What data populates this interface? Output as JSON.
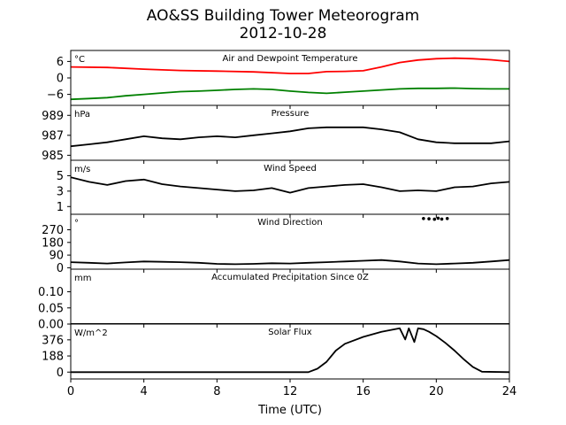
{
  "chart": {
    "title": "AO&SS Building Tower Meteorogram",
    "subtitle": "2012-10-28",
    "xlabel": "Time (UTC)"
  },
  "chart_data": {
    "type": "line",
    "x_range": [
      0,
      24
    ],
    "x_ticks": [
      0,
      4,
      8,
      12,
      16,
      20,
      24
    ],
    "x_tick_labels": [
      "0",
      "4",
      "8",
      "12",
      "16",
      "20",
      "24"
    ],
    "xlabel": "Time (UTC)",
    "panels": [
      {
        "title": "Air and Dewpoint Temperature",
        "unit": "°C",
        "ylim": [
          -10,
          10
        ],
        "y_ticks": [
          6,
          0,
          -6
        ],
        "y_tick_labels": [
          "6",
          "0",
          "−6"
        ],
        "series": [
          {
            "color": "#ff0000",
            "x": [
              0,
              2,
              4,
              6,
              8,
              10,
              12,
              13,
              14,
              15,
              16,
              17,
              18,
              19,
              20,
              21,
              22,
              23,
              24
            ],
            "values": [
              4.0,
              3.8,
              3.2,
              2.7,
              2.5,
              2.2,
              1.6,
              1.6,
              2.3,
              2.4,
              2.6,
              4.0,
              5.6,
              6.5,
              7.0,
              7.2,
              7.0,
              6.6,
              6.0
            ]
          },
          {
            "color": "#008000",
            "x": [
              0,
              1,
              2,
              3,
              4,
              5,
              6,
              7,
              8,
              9,
              10,
              11,
              12,
              13,
              14,
              15,
              16,
              17,
              18,
              19,
              20,
              21,
              22,
              23,
              24
            ],
            "values": [
              -7.8,
              -7.5,
              -7.2,
              -6.5,
              -6.0,
              -5.5,
              -5.0,
              -4.8,
              -4.5,
              -4.2,
              -4.0,
              -4.2,
              -4.8,
              -5.3,
              -5.6,
              -5.2,
              -4.8,
              -4.4,
              -4.0,
              -3.8,
              -3.8,
              -3.7,
              -3.9,
              -4.0,
              -4.0
            ]
          }
        ]
      },
      {
        "title": "Pressure",
        "unit": "hPa",
        "ylim": [
          984.5,
          990
        ],
        "y_ticks": [
          989,
          987,
          985
        ],
        "y_tick_labels": [
          "989",
          "987",
          "985"
        ],
        "series": [
          {
            "color": "#000000",
            "x": [
              0,
              1,
              2,
              3,
              4,
              5,
              6,
              7,
              8,
              9,
              10,
              11,
              12,
              13,
              14,
              15,
              16,
              17,
              18,
              19,
              20,
              21,
              22,
              23,
              24
            ],
            "values": [
              985.9,
              986.1,
              986.3,
              986.6,
              986.9,
              986.7,
              986.6,
              986.8,
              986.9,
              986.8,
              987.0,
              987.2,
              987.4,
              987.7,
              987.8,
              987.8,
              987.8,
              987.6,
              987.3,
              986.6,
              986.3,
              986.2,
              986.2,
              986.2,
              986.4
            ]
          }
        ]
      },
      {
        "title": "Wind Speed",
        "unit": "m/s",
        "ylim": [
          0,
          7
        ],
        "y_ticks": [
          5,
          3,
          1
        ],
        "y_tick_labels": [
          "5",
          "3",
          "1"
        ],
        "series": [
          {
            "color": "#000000",
            "x": [
              0,
              1,
              2,
              3,
              4,
              5,
              6,
              7,
              8,
              9,
              10,
              11,
              12,
              13,
              14,
              15,
              16,
              17,
              18,
              19,
              20,
              21,
              22,
              23,
              24
            ],
            "values": [
              4.8,
              4.2,
              3.8,
              4.3,
              4.5,
              3.9,
              3.6,
              3.4,
              3.2,
              3.0,
              3.1,
              3.4,
              2.8,
              3.4,
              3.6,
              3.8,
              3.9,
              3.5,
              3.0,
              3.1,
              3.0,
              3.5,
              3.6,
              4.0,
              4.2
            ]
          }
        ]
      },
      {
        "title": "Wind Direction",
        "unit": "°",
        "ylim": [
          -10,
          380
        ],
        "y_ticks": [
          270,
          180,
          90,
          0
        ],
        "y_tick_labels": [
          "270",
          "180",
          "90",
          "0"
        ],
        "series": [
          {
            "color": "#000000",
            "x": [
              0,
              1,
              2,
              3,
              4,
              5,
              6,
              7,
              8,
              9,
              10,
              11,
              12,
              13,
              14,
              15,
              16,
              17,
              18,
              19,
              20,
              21,
              22,
              23,
              24
            ],
            "values": [
              40,
              35,
              30,
              38,
              45,
              42,
              40,
              35,
              28,
              25,
              28,
              32,
              30,
              35,
              40,
              45,
              50,
              55,
              45,
              30,
              25,
              30,
              35,
              45,
              55
            ]
          }
        ],
        "scatter": {
          "x": [
            19.3,
            19.6,
            19.9,
            20.1,
            20.3,
            20.6
          ],
          "values": [
            350,
            348,
            345,
            352,
            346,
            350
          ]
        }
      },
      {
        "title": "Accumulated Precipitation Since 0Z",
        "unit": "mm",
        "ylim": [
          0,
          0.17
        ],
        "y_ticks": [
          0.1,
          0.05,
          0.0
        ],
        "y_tick_labels": [
          "0.10",
          "0.05",
          "0.00"
        ],
        "series": [
          {
            "color": "#000000",
            "x": [
              0,
              24
            ],
            "values": [
              0.0,
              0.0
            ]
          }
        ]
      },
      {
        "title": "Solar Flux",
        "unit": "W/m^2",
        "ylim": [
          -80,
          560
        ],
        "y_ticks": [
          376,
          188,
          0
        ],
        "y_tick_labels": [
          "376",
          "188",
          "0"
        ],
        "series": [
          {
            "color": "#000000",
            "x": [
              0,
              13.0,
              13.5,
              14.0,
              14.5,
              15.0,
              16.0,
              17.0,
              18.0,
              18.3,
              18.5,
              18.8,
              19.0,
              19.3,
              19.6,
              20.0,
              20.5,
              21.0,
              21.5,
              22.0,
              22.5,
              24
            ],
            "values": [
              0,
              0,
              40,
              120,
              250,
              330,
              410,
              470,
              510,
              380,
              510,
              350,
              510,
              500,
              470,
              420,
              340,
              250,
              150,
              60,
              5,
              0
            ]
          }
        ]
      }
    ]
  }
}
